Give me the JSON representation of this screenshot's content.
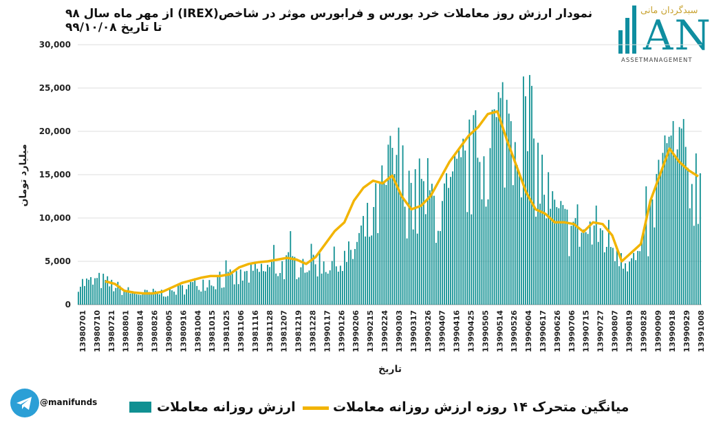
{
  "title": "نمودار ارزش روز معاملات خرد بورس و فرابورس موثر در شاخص(IREX)  از مهر ماه سال ۹۸ تا تاریخ ۹۹/۱۰/۰۸",
  "logo": {
    "persian_text": "سبدگردان مانی",
    "letters": "ANI",
    "subtitle": "ASSETMANAGEMENT"
  },
  "handle": "@manifunds",
  "legend": {
    "bars": "ارزش روزانه معاملات",
    "line": "میانگین متحرک ۱۴ روزه ارزش روزانه معاملات"
  },
  "colors": {
    "bars": "#109092",
    "line": "#f2b400",
    "brand": "#0f8ea0"
  },
  "icons": {
    "telegram": "telegram-icon"
  },
  "chart_data": {
    "type": "bar",
    "xlabel": "تاریخ",
    "ylabel": "میلیارد تومان",
    "ylim": [
      0,
      30000
    ],
    "yticks": [
      "0",
      "5,000",
      "10,000",
      "15,000",
      "20,000",
      "25,000",
      "30,000"
    ],
    "xticks": [
      "13980701",
      "13980710",
      "13980721",
      "13980801",
      "13980814",
      "13980826",
      "13980905",
      "13980916",
      "13981004",
      "13981015",
      "13981025",
      "13981106",
      "13981116",
      "13981128",
      "13981207",
      "13981219",
      "13981228",
      "13990117",
      "13990126",
      "13990206",
      "13990215",
      "13990224",
      "13990303",
      "13990317",
      "13990326",
      "13990407",
      "13990416",
      "13990425",
      "13990505",
      "13990514",
      "13990526",
      "13990604",
      "13990617",
      "13990626",
      "13990706",
      "13990715",
      "13990727",
      "13990807",
      "13990819",
      "13990828",
      "13990909",
      "13990918",
      "13990929",
      "13991008"
    ],
    "grid": "horizontal",
    "daily_value_profile": [
      2700,
      2700,
      3000,
      2400,
      1800,
      1400,
      1400,
      1500,
      1500,
      1900,
      2400,
      2800,
      3000,
      3100,
      3200,
      3600,
      4100,
      4500,
      4800,
      5000,
      5300,
      5500,
      5300,
      5100,
      5800,
      8300,
      10000,
      13500,
      18000,
      14000,
      12000,
      13500,
      11500,
      13000,
      16000,
      17500,
      19000,
      21500,
      23000,
      23000,
      20000,
      15000,
      11000,
      9500,
      9800,
      8800,
      9200,
      8000,
      7000,
      5200,
      6500,
      12500,
      18500,
      17500,
      16000,
      15000
    ],
    "series": [
      {
        "name": "ارزش روزانه معاملات",
        "type": "bar",
        "note_values": "approximate daily values follow profile with day-to-day variation"
      },
      {
        "name": "میانگین متحرک ۱۴ روزه ارزش روزانه معاملات",
        "type": "line",
        "values": [
          2700,
          2400,
          1600,
          1400,
          1300,
          1300,
          1500,
          2000,
          2500,
          2800,
          3100,
          3300,
          3300,
          3500,
          4300,
          4700,
          4900,
          5000,
          5200,
          5400,
          5200,
          4700,
          5500,
          7000,
          8500,
          9500,
          12000,
          13500,
          14300,
          14000,
          14900,
          12500,
          11000,
          11400,
          12500,
          14500,
          16500,
          18000,
          19500,
          20500,
          22000,
          22300,
          19000,
          16000,
          13000,
          11000,
          10500,
          9500,
          9500,
          9300,
          8400,
          9500,
          9300,
          8000,
          5000,
          6000,
          7000,
          12000,
          15000,
          18000,
          16500,
          15500,
          14800
        ]
      }
    ]
  }
}
